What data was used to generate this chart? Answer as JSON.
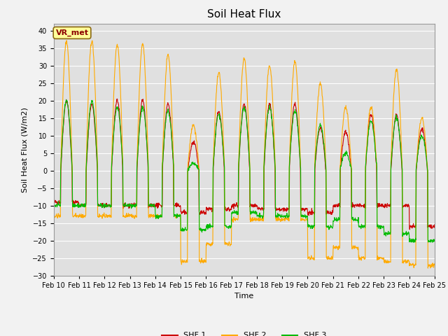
{
  "title": "Soil Heat Flux",
  "xlabel": "Time",
  "ylabel": "Soil Heat Flux (W/m2)",
  "ylim": [
    -30,
    42
  ],
  "yticks": [
    -30,
    -25,
    -20,
    -15,
    -10,
    -5,
    0,
    5,
    10,
    15,
    20,
    25,
    30,
    35,
    40
  ],
  "fig_bg_color": "#f2f2f2",
  "ax_bg_color": "#e0e0e0",
  "line_colors": {
    "SHF 1": "#cc0000",
    "SHF 2": "#ffaa00",
    "SHF 3": "#00bb00"
  },
  "line_widths": {
    "SHF 1": 0.8,
    "SHF 2": 0.8,
    "SHF 3": 0.8
  },
  "annotation_text": "VR_met",
  "annotation_bg": "#ffff99",
  "annotation_border": "#8b6914",
  "annotation_text_color": "#8b0000",
  "start_day": 10,
  "end_day": 25,
  "n_days": 15,
  "points_per_day": 96,
  "amplitudes_shf2": [
    37,
    37,
    36,
    36,
    33,
    13,
    28,
    32,
    30,
    31,
    25,
    18,
    18,
    29,
    15
  ],
  "amplitudes_shf1": [
    20,
    19,
    20,
    20,
    19,
    8,
    17,
    19,
    19,
    19,
    12,
    11,
    16,
    16,
    12
  ],
  "amplitudes_shf3": [
    20,
    20,
    18,
    18,
    17,
    2,
    16,
    18,
    18,
    17,
    13,
    5,
    14,
    15,
    10
  ],
  "night_shf1": [
    -9,
    -10,
    -10,
    -10,
    -10,
    -12,
    -11,
    -10,
    -11,
    -11,
    -12,
    -10,
    -10,
    -10,
    -16
  ],
  "night_shf2": [
    -13,
    -13,
    -13,
    -13,
    -13,
    -26,
    -21,
    -14,
    -14,
    -14,
    -25,
    -22,
    -25,
    -26,
    -27
  ],
  "night_shf3": [
    -10,
    -10,
    -10,
    -10,
    -13,
    -17,
    -16,
    -12,
    -13,
    -13,
    -16,
    -14,
    -16,
    -18,
    -20
  ]
}
